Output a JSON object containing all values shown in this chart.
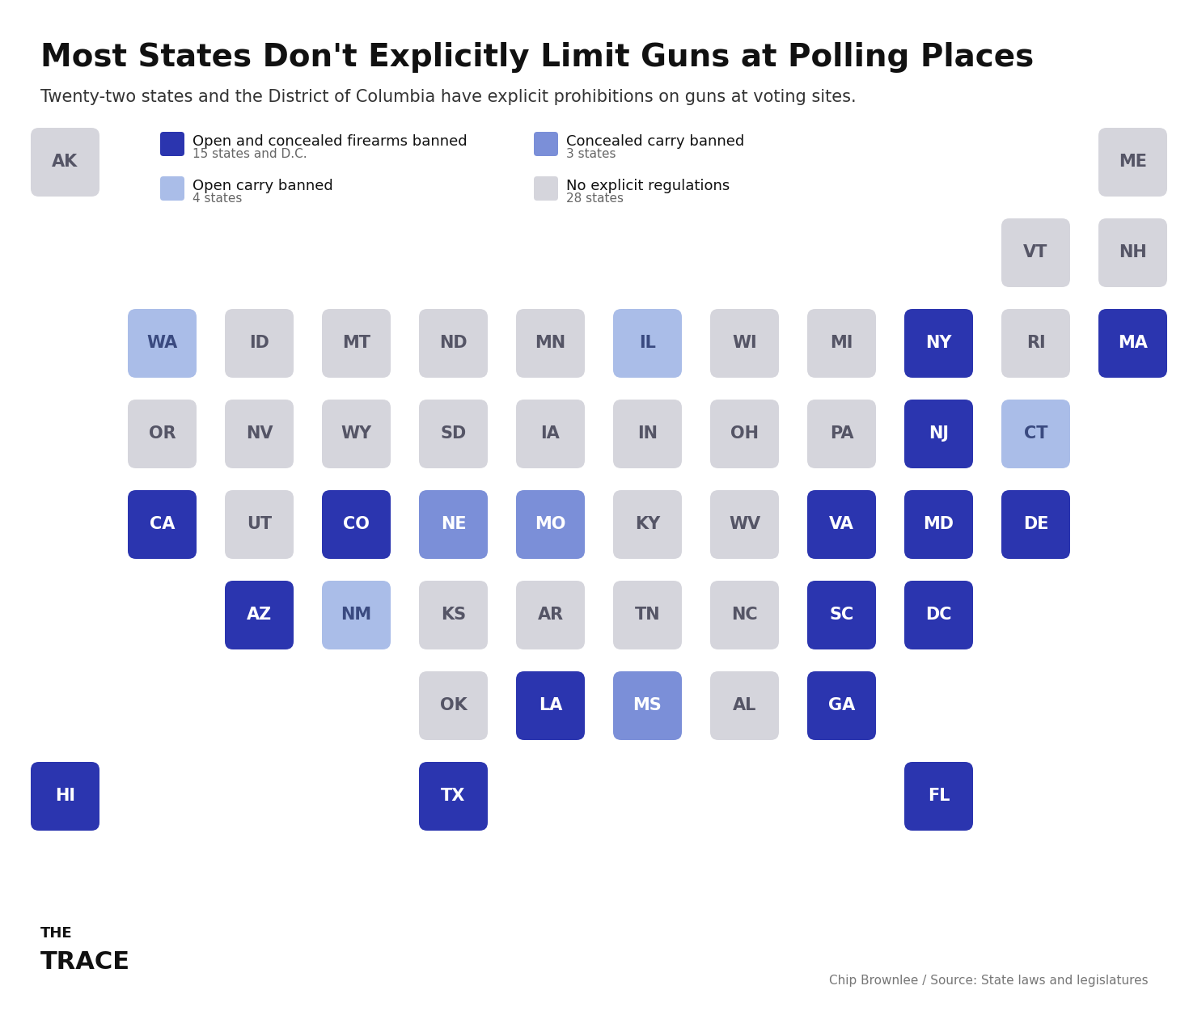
{
  "title": "Most States Don't Explicitly Limit Guns at Polling Places",
  "subtitle": "Twenty-two states and the District of Columbia have explicit prohibitions on guns at voting sites.",
  "attribution": "Chip Brownlee / Source: State laws and legislatures",
  "background_color": "#ffffff",
  "legend": [
    {
      "label": "Open and concealed firearms banned",
      "sublabel": "15 states and D.C.",
      "color": "#2B35AF"
    },
    {
      "label": "Concealed carry banned",
      "sublabel": "3 states",
      "color": "#7B8FD8"
    },
    {
      "label": "Open carry banned",
      "sublabel": "4 states",
      "color": "#AABDE8"
    },
    {
      "label": "No explicit regulations",
      "sublabel": "28 states",
      "color": "#D5D5DC"
    }
  ],
  "states": [
    {
      "abbr": "AK",
      "row": 0,
      "col": 0,
      "category": "none"
    },
    {
      "abbr": "ME",
      "row": 0,
      "col": 11,
      "category": "none"
    },
    {
      "abbr": "VT",
      "row": 1,
      "col": 10,
      "category": "none"
    },
    {
      "abbr": "NH",
      "row": 1,
      "col": 11,
      "category": "none"
    },
    {
      "abbr": "WA",
      "row": 2,
      "col": 1,
      "category": "open_carry_banned"
    },
    {
      "abbr": "ID",
      "row": 2,
      "col": 2,
      "category": "none"
    },
    {
      "abbr": "MT",
      "row": 2,
      "col": 3,
      "category": "none"
    },
    {
      "abbr": "ND",
      "row": 2,
      "col": 4,
      "category": "none"
    },
    {
      "abbr": "MN",
      "row": 2,
      "col": 5,
      "category": "none"
    },
    {
      "abbr": "IL",
      "row": 2,
      "col": 6,
      "category": "open_carry_banned"
    },
    {
      "abbr": "WI",
      "row": 2,
      "col": 7,
      "category": "none"
    },
    {
      "abbr": "MI",
      "row": 2,
      "col": 8,
      "category": "none"
    },
    {
      "abbr": "NY",
      "row": 2,
      "col": 9,
      "category": "both_banned"
    },
    {
      "abbr": "RI",
      "row": 2,
      "col": 10,
      "category": "none"
    },
    {
      "abbr": "MA",
      "row": 2,
      "col": 11,
      "category": "both_banned"
    },
    {
      "abbr": "OR",
      "row": 3,
      "col": 1,
      "category": "none"
    },
    {
      "abbr": "NV",
      "row": 3,
      "col": 2,
      "category": "none"
    },
    {
      "abbr": "WY",
      "row": 3,
      "col": 3,
      "category": "none"
    },
    {
      "abbr": "SD",
      "row": 3,
      "col": 4,
      "category": "none"
    },
    {
      "abbr": "IA",
      "row": 3,
      "col": 5,
      "category": "none"
    },
    {
      "abbr": "IN",
      "row": 3,
      "col": 6,
      "category": "none"
    },
    {
      "abbr": "OH",
      "row": 3,
      "col": 7,
      "category": "none"
    },
    {
      "abbr": "PA",
      "row": 3,
      "col": 8,
      "category": "none"
    },
    {
      "abbr": "NJ",
      "row": 3,
      "col": 9,
      "category": "both_banned"
    },
    {
      "abbr": "CT",
      "row": 3,
      "col": 10,
      "category": "open_carry_banned"
    },
    {
      "abbr": "CA",
      "row": 4,
      "col": 1,
      "category": "both_banned"
    },
    {
      "abbr": "UT",
      "row": 4,
      "col": 2,
      "category": "none"
    },
    {
      "abbr": "CO",
      "row": 4,
      "col": 3,
      "category": "both_banned"
    },
    {
      "abbr": "NE",
      "row": 4,
      "col": 4,
      "category": "concealed_banned"
    },
    {
      "abbr": "MO",
      "row": 4,
      "col": 5,
      "category": "concealed_banned"
    },
    {
      "abbr": "KY",
      "row": 4,
      "col": 6,
      "category": "none"
    },
    {
      "abbr": "WV",
      "row": 4,
      "col": 7,
      "category": "none"
    },
    {
      "abbr": "VA",
      "row": 4,
      "col": 8,
      "category": "both_banned"
    },
    {
      "abbr": "MD",
      "row": 4,
      "col": 9,
      "category": "both_banned"
    },
    {
      "abbr": "DE",
      "row": 4,
      "col": 10,
      "category": "both_banned"
    },
    {
      "abbr": "AZ",
      "row": 5,
      "col": 2,
      "category": "both_banned"
    },
    {
      "abbr": "NM",
      "row": 5,
      "col": 3,
      "category": "open_carry_banned"
    },
    {
      "abbr": "KS",
      "row": 5,
      "col": 4,
      "category": "none"
    },
    {
      "abbr": "AR",
      "row": 5,
      "col": 5,
      "category": "none"
    },
    {
      "abbr": "TN",
      "row": 5,
      "col": 6,
      "category": "none"
    },
    {
      "abbr": "NC",
      "row": 5,
      "col": 7,
      "category": "none"
    },
    {
      "abbr": "SC",
      "row": 5,
      "col": 8,
      "category": "both_banned"
    },
    {
      "abbr": "DC",
      "row": 5,
      "col": 9,
      "category": "both_banned"
    },
    {
      "abbr": "OK",
      "row": 6,
      "col": 4,
      "category": "none"
    },
    {
      "abbr": "LA",
      "row": 6,
      "col": 5,
      "category": "both_banned"
    },
    {
      "abbr": "MS",
      "row": 6,
      "col": 6,
      "category": "concealed_banned"
    },
    {
      "abbr": "AL",
      "row": 6,
      "col": 7,
      "category": "none"
    },
    {
      "abbr": "GA",
      "row": 6,
      "col": 8,
      "category": "both_banned"
    },
    {
      "abbr": "HI",
      "row": 7,
      "col": 0,
      "category": "both_banned"
    },
    {
      "abbr": "TX",
      "row": 7,
      "col": 4,
      "category": "both_banned"
    },
    {
      "abbr": "FL",
      "row": 7,
      "col": 9,
      "category": "both_banned"
    }
  ],
  "colors": {
    "both_banned": "#2B35AF",
    "concealed_banned": "#7B8FD8",
    "open_carry_banned": "#AABDE8",
    "none": "#D5D5DC"
  },
  "text_colors": {
    "both_banned": "#ffffff",
    "concealed_banned": "#ffffff",
    "open_carry_banned": "#3a4a80",
    "none": "#555566"
  },
  "title_fontsize": 28,
  "subtitle_fontsize": 15,
  "state_fontsize": 15,
  "legend_label_fontsize": 13,
  "legend_sublabel_fontsize": 11,
  "attribution_fontsize": 11,
  "logo_the_fontsize": 13,
  "logo_trace_fontsize": 22
}
